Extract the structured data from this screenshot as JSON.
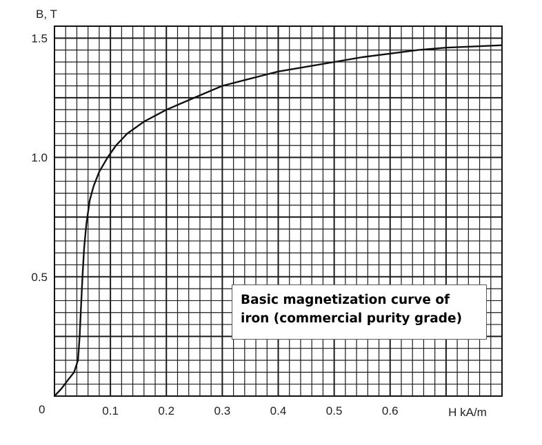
{
  "chart_data": {
    "type": "line",
    "title": "Basic magnetization curve of iron (commercial purity grade)",
    "title_lines": [
      "Basic magnetization curve of",
      "iron (commercial purity grade)"
    ],
    "xlabel": "H kA/m",
    "ylabel": "B, T",
    "origin_label": "0",
    "xlim": [
      0,
      0.8
    ],
    "ylim": [
      0,
      1.55
    ],
    "x_ticks": [
      0.1,
      0.2,
      0.3,
      0.4,
      0.5,
      0.6
    ],
    "x_tick_labels": [
      "0.1",
      "0.2",
      "0.3",
      "0.4",
      "0.5",
      "0.6"
    ],
    "y_ticks": [
      0.5,
      1.0,
      1.5
    ],
    "y_tick_labels": [
      "0.5",
      "1.0",
      "1.5"
    ],
    "grid": true,
    "legend": "none",
    "series": [
      {
        "color": "#111111",
        "x": [
          0,
          0.012,
          0.025,
          0.035,
          0.042,
          0.045,
          0.047,
          0.05,
          0.053,
          0.057,
          0.063,
          0.07,
          0.08,
          0.095,
          0.11,
          0.13,
          0.16,
          0.2,
          0.25,
          0.3,
          0.35,
          0.4,
          0.45,
          0.5,
          0.55,
          0.6,
          0.65,
          0.7,
          0.75,
          0.8
        ],
        "y": [
          0,
          0.03,
          0.07,
          0.1,
          0.15,
          0.25,
          0.35,
          0.5,
          0.62,
          0.72,
          0.82,
          0.88,
          0.94,
          1.0,
          1.05,
          1.1,
          1.15,
          1.2,
          1.25,
          1.3,
          1.33,
          1.36,
          1.38,
          1.4,
          1.42,
          1.435,
          1.45,
          1.46,
          1.465,
          1.47
        ]
      }
    ]
  }
}
